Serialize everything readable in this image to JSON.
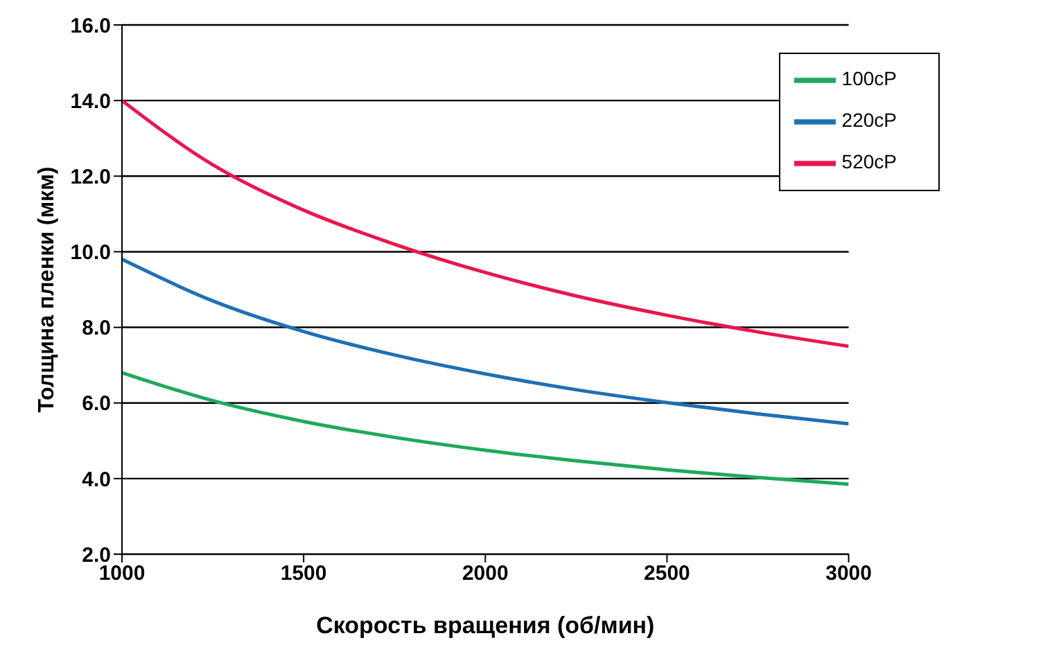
{
  "chart_data": {
    "type": "line",
    "xlabel": "Скорость вращения (об/мин)",
    "ylabel": "Толщина пленки (мкм)",
    "x": [
      1000,
      1250,
      1500,
      1750,
      2000,
      2250,
      2500,
      2750,
      3000
    ],
    "series": [
      {
        "name": "520cP",
        "color": "#e8174f",
        "values": [
          14.0,
          12.3,
          11.1,
          10.2,
          9.45,
          8.83,
          8.32,
          7.88,
          7.5
        ]
      },
      {
        "name": "220cP",
        "color": "#1f6fb5",
        "values": [
          9.8,
          8.7,
          7.89,
          7.27,
          6.77,
          6.35,
          6.01,
          5.71,
          5.45
        ]
      },
      {
        "name": "100cP",
        "color": "#1fa95a",
        "values": [
          6.8,
          6.06,
          5.51,
          5.09,
          4.75,
          4.47,
          4.23,
          4.03,
          3.85
        ]
      }
    ],
    "xlim": [
      1000,
      3000
    ],
    "xticks": [
      1000,
      1500,
      2000,
      2500,
      3000
    ],
    "ylim": [
      2,
      16
    ],
    "yticks": [
      {
        "value": 2,
        "label": "2.0"
      },
      {
        "value": 4,
        "label": "4.0"
      },
      {
        "value": 6,
        "label": "6.0"
      },
      {
        "value": 8,
        "label": "8.0"
      },
      {
        "value": 10,
        "label": "10.0"
      },
      {
        "value": 12,
        "label": "12.0"
      },
      {
        "value": 14,
        "label": "14.0"
      },
      {
        "value": 16,
        "label": "16.0"
      }
    ],
    "grid": "y",
    "legend": "top right",
    "marker": "none",
    "line_style": "solid"
  }
}
